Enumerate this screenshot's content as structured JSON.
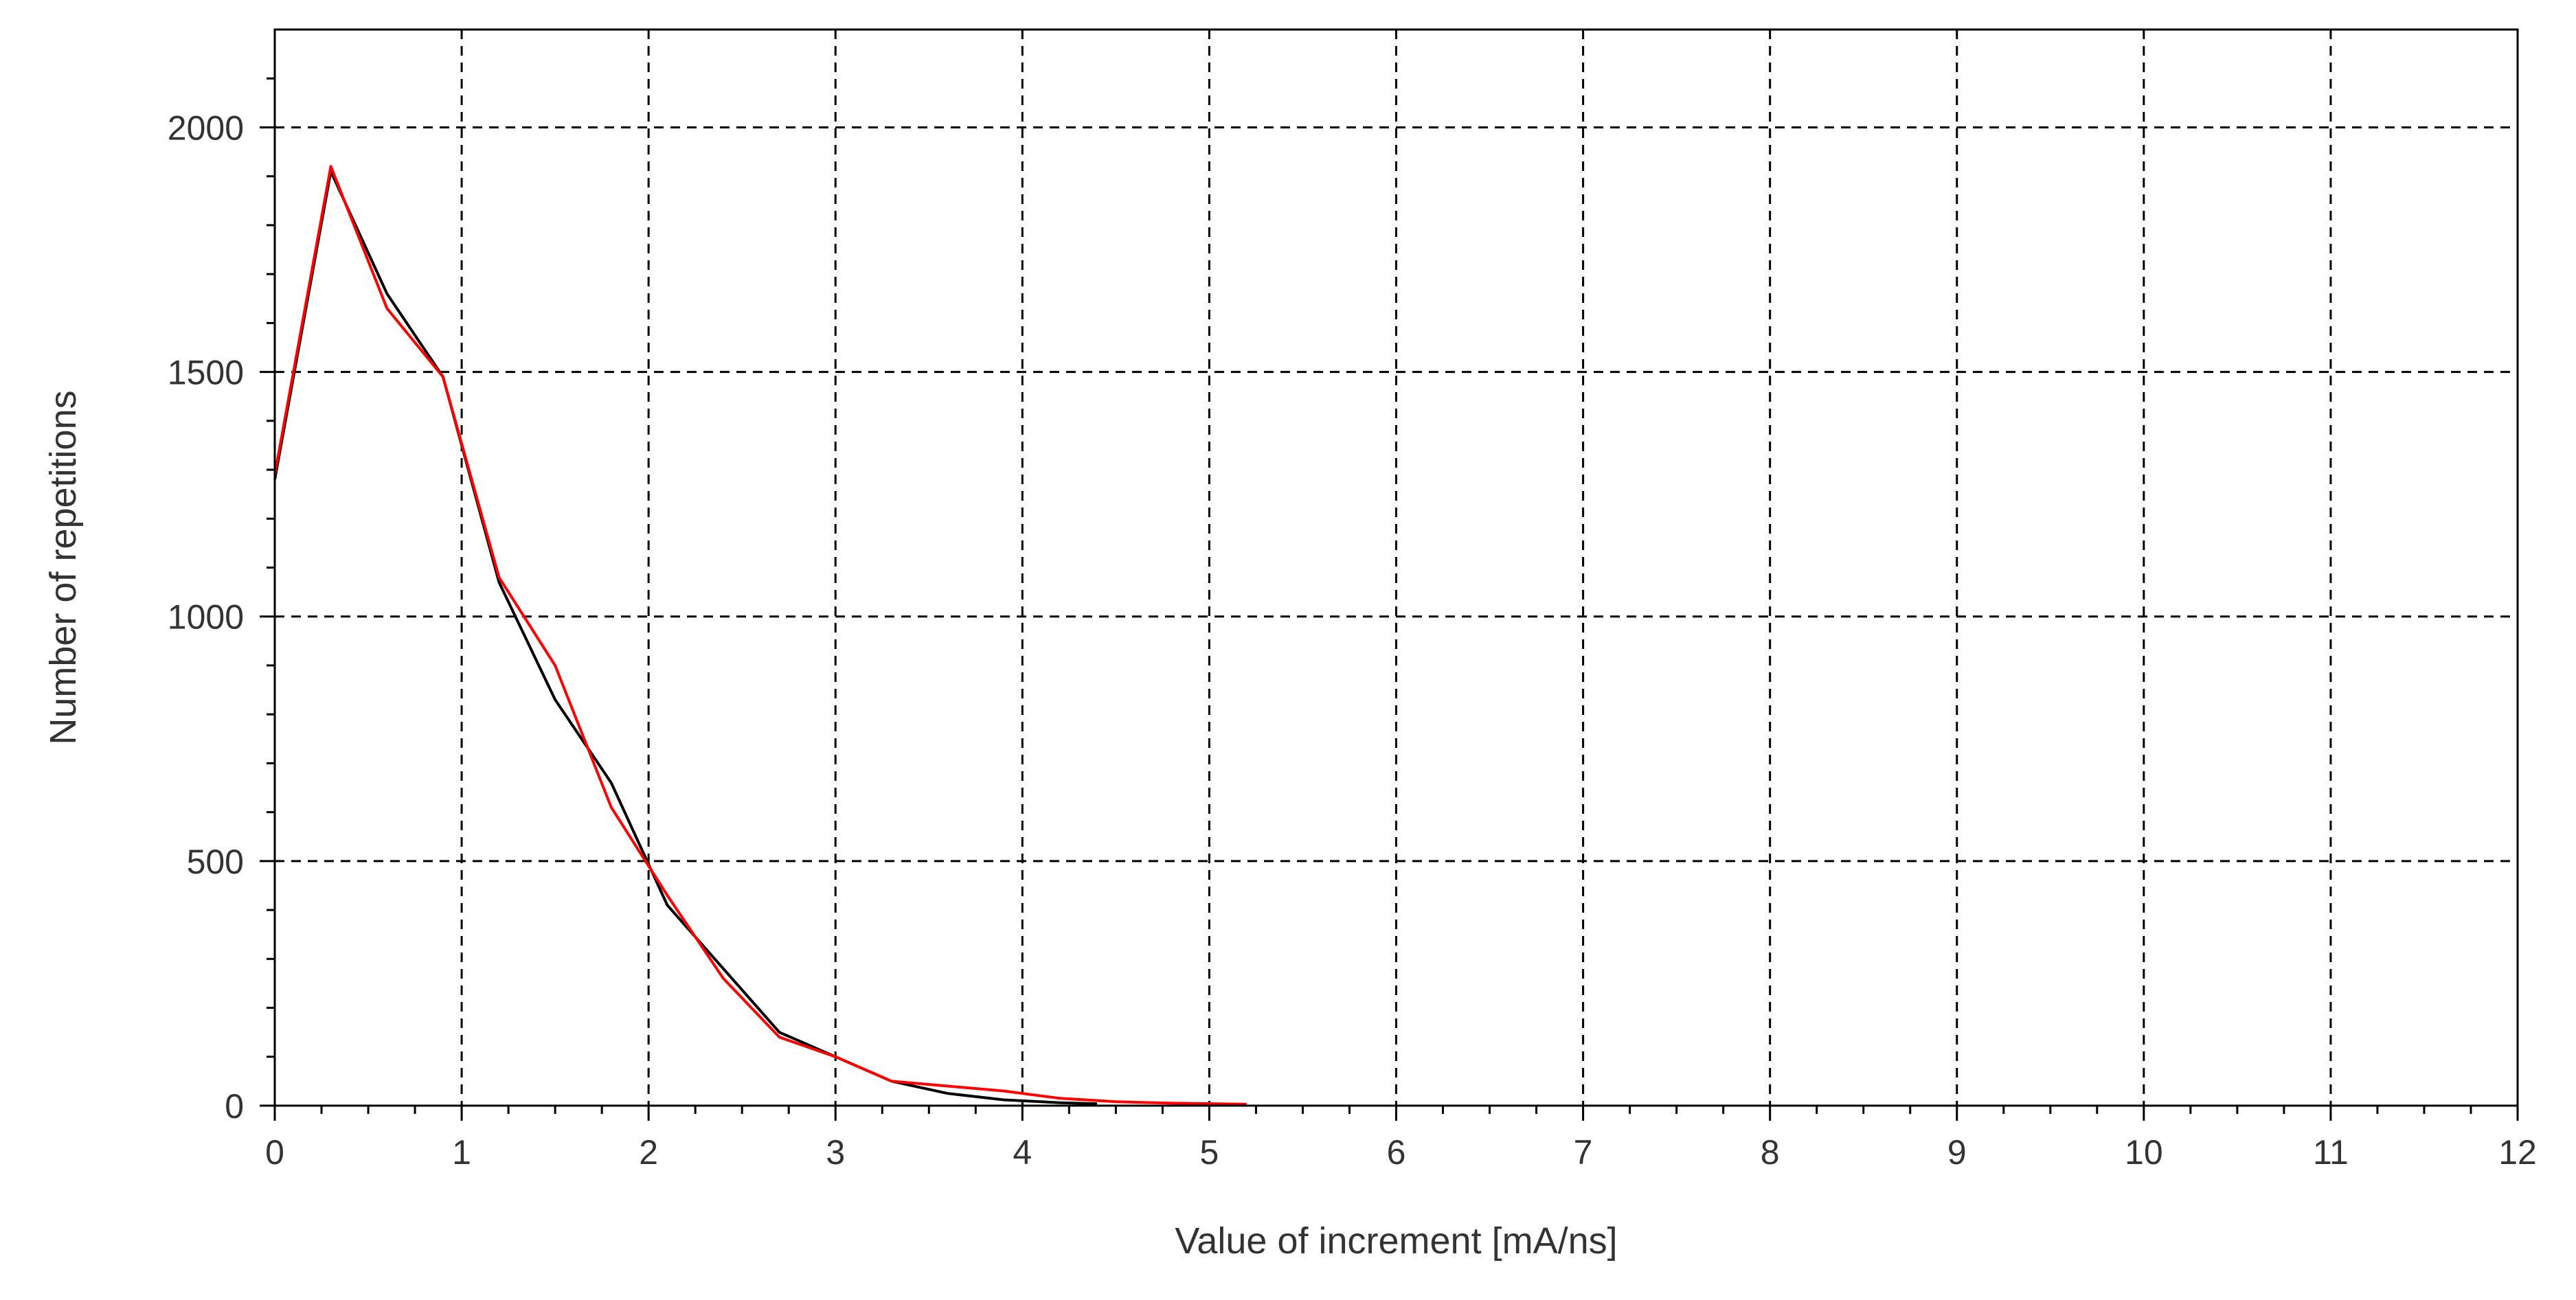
{
  "chart_data": {
    "type": "line",
    "title": "",
    "xlabel": "Value of increment [mA/ns]",
    "ylabel": "Number of repetitions",
    "xlim": [
      0,
      12
    ],
    "ylim": [
      0,
      2200
    ],
    "x_ticks": [
      0,
      1,
      2,
      3,
      4,
      5,
      6,
      7,
      8,
      9,
      10,
      11,
      12
    ],
    "x_tick_labels": [
      "0",
      "1",
      "2",
      "3",
      "4",
      "5",
      "6",
      "7",
      "8",
      "9",
      "10",
      "11",
      "12"
    ],
    "y_ticks": [
      0,
      500,
      1000,
      1500,
      2000
    ],
    "y_tick_labels": [
      "0",
      "500",
      "1000",
      "1500",
      "2000"
    ],
    "grid": true,
    "legend": "none",
    "colors": {
      "axes": "#000000",
      "grid": "#000000",
      "text": "#333333",
      "background": "#ffffff"
    },
    "series": [
      {
        "color": "#000000",
        "x": [
          0,
          0.3,
          0.6,
          0.9,
          1.2,
          1.5,
          1.8,
          2.1,
          2.4,
          2.7,
          3.0,
          3.3,
          3.6,
          3.9,
          4.2,
          4.4
        ],
        "y": [
          1280,
          1910,
          1660,
          1490,
          1070,
          830,
          660,
          410,
          280,
          150,
          100,
          50,
          25,
          12,
          6,
          4
        ]
      },
      {
        "color": "#ff0000",
        "x": [
          0,
          0.3,
          0.6,
          0.9,
          1.2,
          1.5,
          1.8,
          2.1,
          2.4,
          2.7,
          3.0,
          3.3,
          3.6,
          3.9,
          4.2,
          4.5,
          4.8,
          5.2
        ],
        "y": [
          1290,
          1920,
          1630,
          1490,
          1080,
          900,
          610,
          430,
          260,
          140,
          100,
          50,
          40,
          30,
          15,
          8,
          5,
          3
        ]
      }
    ]
  }
}
